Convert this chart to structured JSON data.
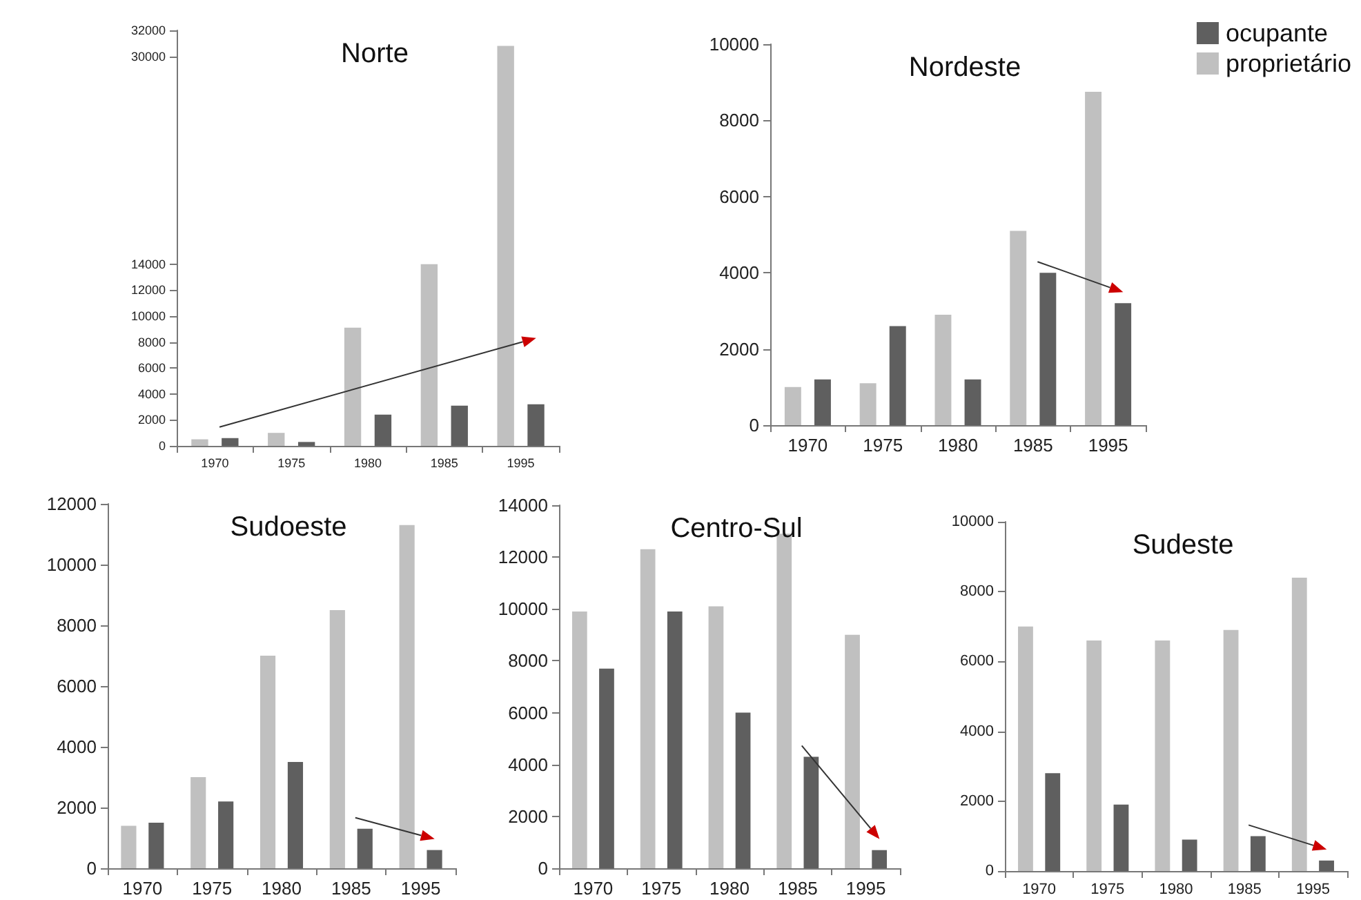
{
  "chart_data": [
    {
      "type": "bar",
      "title": "Norte",
      "categories": [
        "1970",
        "1975",
        "1980",
        "1985",
        "1995"
      ],
      "series": [
        {
          "color": "#5f5f5f",
          "values": [
            600,
            300,
            2400,
            3100,
            3200
          ]
        },
        {
          "color": "#c0c0c0",
          "values": [
            500,
            1000,
            9100,
            14000,
            30800
          ]
        }
      ],
      "ylim": [
        0,
        32000
      ],
      "yticks": [
        0,
        2000,
        4000,
        6000,
        8000,
        10000,
        12000,
        14000,
        30000,
        32000
      ],
      "legend": false
    },
    {
      "type": "bar",
      "title": "Nordeste",
      "categories": [
        "1970",
        "1975",
        "1980",
        "1985",
        "1995"
      ],
      "series": [
        {
          "name": "ocupante",
          "color": "#5f5f5f",
          "values": [
            1200,
            2600,
            1200,
            4000,
            3200
          ]
        },
        {
          "name": "proprietário",
          "color": "#c0c0c0",
          "values": [
            1000,
            1100,
            2900,
            5100,
            8750
          ]
        }
      ],
      "ylim": [
        0,
        10000
      ],
      "yticks": [
        0,
        2000,
        4000,
        6000,
        8000,
        10000
      ],
      "legend": "top right"
    },
    {
      "type": "bar",
      "title": "Sudoeste",
      "categories": [
        "1970",
        "1975",
        "1980",
        "1985",
        "1995"
      ],
      "series": [
        {
          "color": "#5f5f5f",
          "values": [
            1500,
            2200,
            3500,
            1300,
            600
          ]
        },
        {
          "color": "#c0c0c0",
          "values": [
            1400,
            3000,
            7000,
            8500,
            11300
          ]
        }
      ],
      "ylim": [
        0,
        12000
      ],
      "yticks": [
        0,
        2000,
        4000,
        6000,
        8000,
        10000,
        12000
      ],
      "legend": false
    },
    {
      "type": "bar",
      "title": "Centro-Sul",
      "categories": [
        "1970",
        "1975",
        "1980",
        "1985",
        "1995"
      ],
      "series": [
        {
          "color": "#5f5f5f",
          "values": [
            7700,
            9900,
            6000,
            4300,
            700
          ]
        },
        {
          "color": "#c0c0c0",
          "values": [
            9900,
            12300,
            10100,
            12900,
            9000
          ]
        }
      ],
      "ylim": [
        0,
        14000
      ],
      "yticks": [
        0,
        2000,
        4000,
        6000,
        8000,
        10000,
        12000,
        14000
      ],
      "legend": false
    },
    {
      "type": "bar",
      "title": "Sudeste",
      "categories": [
        "1970",
        "1975",
        "1980",
        "1985",
        "1995"
      ],
      "series": [
        {
          "color": "#5f5f5f",
          "values": [
            2800,
            1900,
            900,
            1000,
            300
          ]
        },
        {
          "color": "#c0c0c0",
          "values": [
            7000,
            6600,
            6600,
            6900,
            8400
          ]
        }
      ],
      "ylim": [
        0,
        10000
      ],
      "yticks": [
        0,
        2000,
        4000,
        6000,
        8000,
        10000
      ],
      "legend": false
    }
  ]
}
